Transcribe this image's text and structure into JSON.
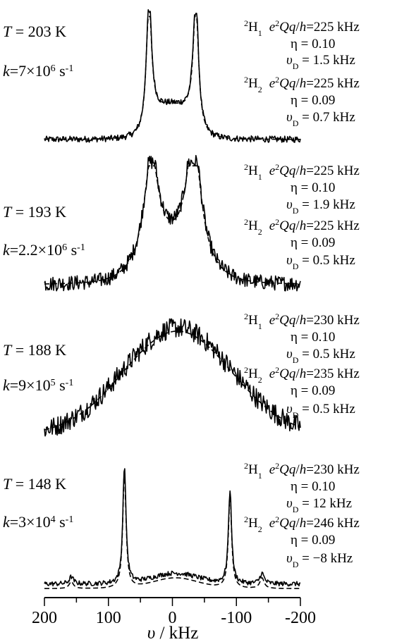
{
  "chart_data": {
    "type": "line",
    "xlabel_symbol": "υ",
    "xlabel_unit": " / kHz",
    "xlim": [
      200,
      -200
    ],
    "x_ticks": [
      200,
      150,
      100,
      50,
      0,
      -50,
      -100,
      -150,
      -200
    ],
    "x_tick_labels": [
      "200",
      "100",
      "0",
      "-100",
      "-200"
    ],
    "panels": [
      {
        "T_label": "T",
        "T_value": " = 203 K",
        "k_label": "k",
        "k_mantissa": "=7×10",
        "k_exp": "6",
        "k_unit": " s",
        "k_unit_exp": "-1",
        "site1": {
          "label": "H",
          "mass": "2",
          "sub": "1",
          "eqq_prefix": "e",
          "eqq_sup": "2",
          "eqq_mid": "Qq",
          "eqq_over": "/",
          "eqq_h": "h",
          "eqq_value": "=225 kHz",
          "eta": "η = 0.10",
          "nuD_sym": "υ",
          "nuD_sub": "D",
          "nuD_value": " = 1.5 kHz"
        },
        "site2": {
          "label": "H",
          "mass": "2",
          "sub": "2",
          "eqq_prefix": "e",
          "eqq_sup": "2",
          "eqq_mid": "Qq",
          "eqq_over": "/",
          "eqq_h": "h",
          "eqq_value": "=225 kHz",
          "eta": "η = 0.09",
          "nuD_sym": "υ",
          "nuD_sub": "D",
          "nuD_value": " = 0.7 kHz"
        },
        "shape": "pake",
        "peaks": {
          "left": 37,
          "right": -37,
          "width": 5,
          "height": 1.0,
          "floor": 0.14
        },
        "noise": 0.025
      },
      {
        "T_label": "T",
        "T_value": " = 193 K",
        "k_label": "k",
        "k_mantissa": "=2.2×10",
        "k_exp": "6",
        "k_unit": " s",
        "k_unit_exp": "-1",
        "site1": {
          "label": "H",
          "mass": "2",
          "sub": "1",
          "eqq_prefix": "e",
          "eqq_sup": "2",
          "eqq_mid": "Qq",
          "eqq_over": "/",
          "eqq_h": "h",
          "eqq_value": "=225 kHz",
          "eta": "η = 0.10",
          "nuD_sym": "υ",
          "nuD_sub": "D",
          "nuD_value": " = 1.9 kHz"
        },
        "site2": {
          "label": "H",
          "mass": "2",
          "sub": "2",
          "eqq_prefix": "e",
          "eqq_sup": "2",
          "eqq_mid": "Qq",
          "eqq_over": "/",
          "eqq_h": "h",
          "eqq_value": "=225 kHz",
          "eta": "η = 0.09",
          "nuD_sym": "υ",
          "nuD_sub": "D",
          "nuD_value": " = 0.5 kHz"
        },
        "shape": "broad-pake",
        "peaks": {
          "left": 33,
          "right": -33,
          "width": 14,
          "height": 1.0,
          "floor": 0.1
        },
        "noise": 0.06
      },
      {
        "T_label": "T",
        "T_value": " = 188 K",
        "k_label": "k",
        "k_mantissa": "=9×10",
        "k_exp": "5",
        "k_unit": " s",
        "k_unit_exp": "-1",
        "site1": {
          "label": "H",
          "mass": "2",
          "sub": "1",
          "eqq_prefix": "e",
          "eqq_sup": "2",
          "eqq_mid": "Qq",
          "eqq_over": "/",
          "eqq_h": "h",
          "eqq_value": "=230 kHz",
          "eta": "η = 0.10",
          "nuD_sym": "υ",
          "nuD_sub": "D",
          "nuD_value": " = 0.5 kHz"
        },
        "site2": {
          "label": "H",
          "mass": "2",
          "sub": "2",
          "eqq_prefix": "e",
          "eqq_sup": "2",
          "eqq_mid": "Qq",
          "eqq_over": "/",
          "eqq_h": "h",
          "eqq_value": "=235 kHz",
          "eta": "η = 0.09",
          "nuD_sym": "υ",
          "nuD_sub": "D",
          "nuD_value": " = 0.5 kHz"
        },
        "shape": "gaussian",
        "peaks": {
          "center": -8,
          "width": 85,
          "height": 1.0
        },
        "noise": 0.09
      },
      {
        "T_label": "T",
        "T_value": " = 148 K",
        "k_label": "k",
        "k_mantissa": "=3×10",
        "k_exp": "4",
        "k_unit": " s",
        "k_unit_exp": "-1",
        "site1": {
          "label": "H",
          "mass": "2",
          "sub": "1",
          "eqq_prefix": "e",
          "eqq_sup": "2",
          "eqq_mid": "Qq",
          "eqq_over": "/",
          "eqq_h": "h",
          "eqq_value": "=230 kHz",
          "eta": "η = 0.10",
          "nuD_sym": "υ",
          "nuD_sub": "D",
          "nuD_value": " = 12 kHz"
        },
        "site2": {
          "label": "H",
          "mass": "2",
          "sub": "2",
          "eqq_prefix": "e",
          "eqq_sup": "2",
          "eqq_mid": "Qq",
          "eqq_over": "/",
          "eqq_h": "h",
          "eqq_value": "=246 kHz",
          "eta": "η = 0.09",
          "nuD_sym": "υ",
          "nuD_sub": "D",
          "nuD_value": " = −8 kHz"
        },
        "shape": "slow",
        "peaks": {
          "main_left": 75,
          "main_right": -90,
          "side_left": 158,
          "side_right": -140,
          "width": 3,
          "height": 1.0
        },
        "noise": 0.02
      }
    ]
  }
}
